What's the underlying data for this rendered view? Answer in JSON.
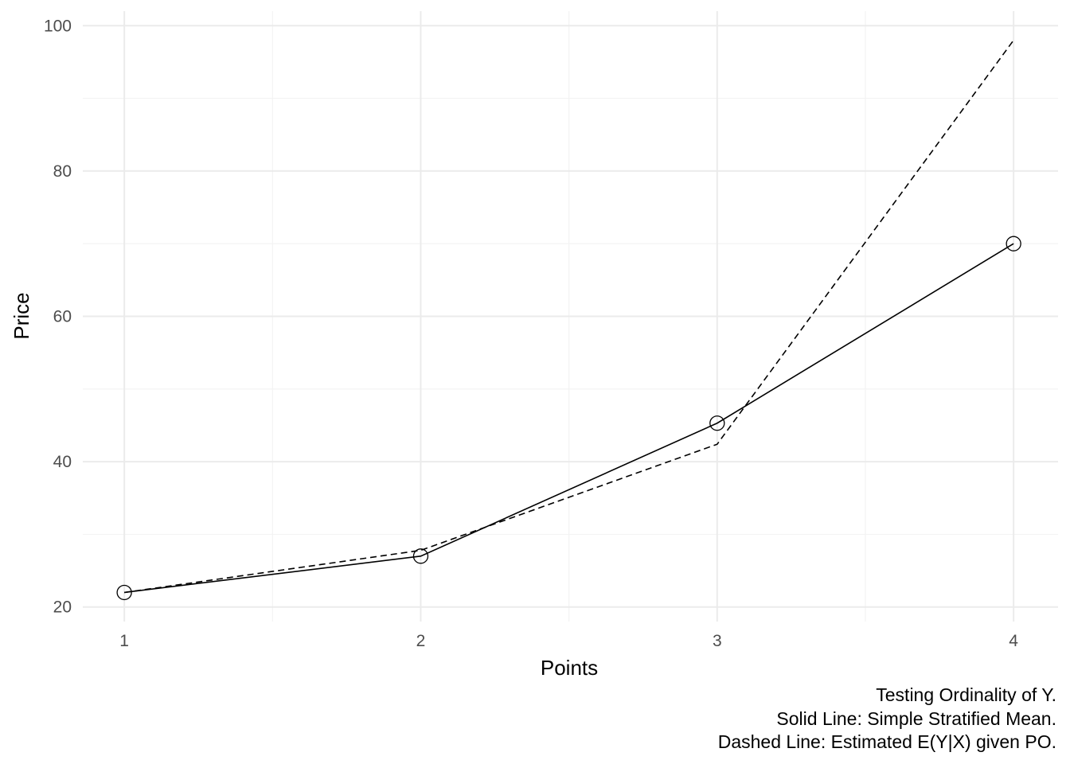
{
  "chart_data": {
    "type": "line",
    "title": "",
    "xlabel": "Points",
    "ylabel": "Price",
    "x": [
      1,
      2,
      3,
      4
    ],
    "x_ticks": [
      "1",
      "2",
      "3",
      "4"
    ],
    "y_ticks": [
      "20",
      "40",
      "60",
      "80",
      "100"
    ],
    "xlim": [
      0.86,
      4.15
    ],
    "ylim": [
      18,
      102
    ],
    "grid": true,
    "legend": "none",
    "series": [
      {
        "values": [
          22,
          27,
          45.3,
          70
        ],
        "line_style": "solid",
        "markers": "open-circle",
        "color": "#000000"
      },
      {
        "values": [
          22,
          27.8,
          42.4,
          98
        ],
        "line_style": "dashed",
        "markers": "none",
        "color": "#000000"
      }
    ],
    "caption": [
      "Testing Ordinality of Y.",
      "Solid Line: Simple Stratified Mean.",
      "Dashed Line: Estimated E(Y|X) given PO."
    ]
  }
}
